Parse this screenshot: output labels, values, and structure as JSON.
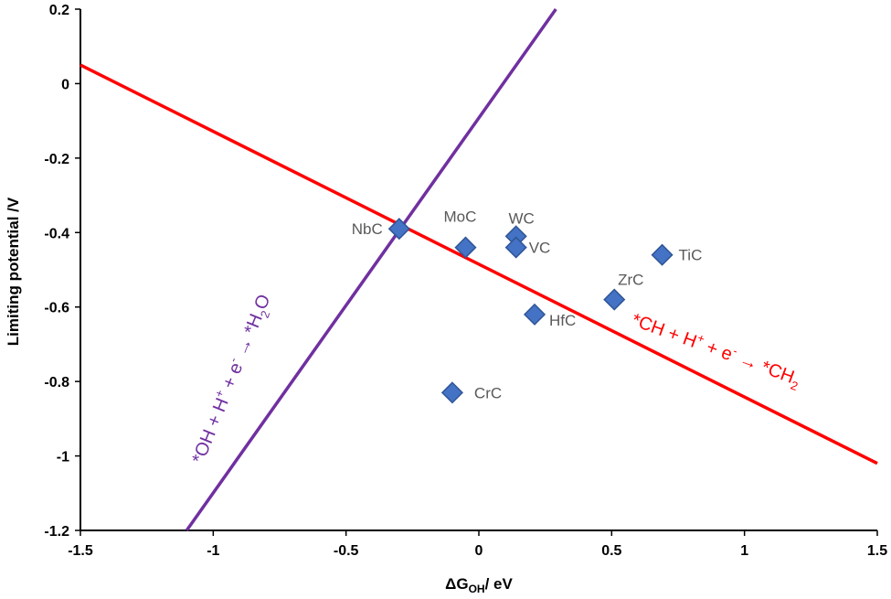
{
  "chart_data": {
    "type": "scatter",
    "title": "",
    "xlabel": {
      "main": "ΔG",
      "sub": "OH",
      "rest": "/ eV"
    },
    "ylabel": "Limiting potential /V",
    "xlim": [
      -1.5,
      1.5
    ],
    "ylim": [
      -1.2,
      0.2
    ],
    "x_ticks": [
      -1.5,
      -1,
      -0.5,
      0,
      0.5,
      1,
      1.5
    ],
    "x_tick_labels": [
      "-1.5",
      "-1",
      "-0.5",
      "0",
      "0.5",
      "1",
      "1.5"
    ],
    "y_ticks": [
      0.2,
      0,
      -0.2,
      -0.4,
      -0.6,
      -0.8,
      -1,
      -1.2
    ],
    "y_tick_labels": [
      "0.2",
      "0",
      "-0.2",
      "-0.4",
      "-0.6",
      "-0.8",
      "-1",
      "-1.2"
    ],
    "grid": false,
    "marker_color": "#4472C4",
    "marker_edge_color": "#2F5597",
    "points": [
      {
        "label": "NbC",
        "x": -0.3,
        "y": -0.39
      },
      {
        "label": "MoC",
        "x": -0.05,
        "y": -0.44
      },
      {
        "label": "WC",
        "x": 0.14,
        "y": -0.41
      },
      {
        "label": "VC",
        "x": 0.14,
        "y": -0.44
      },
      {
        "label": "TiC",
        "x": 0.69,
        "y": -0.46
      },
      {
        "label": "ZrC",
        "x": 0.51,
        "y": -0.58
      },
      {
        "label": "HfC",
        "x": 0.21,
        "y": -0.62
      },
      {
        "label": "CrC",
        "x": -0.1,
        "y": -0.83
      }
    ],
    "lines": [
      {
        "name": "*CH + H+ + e- → *CH2",
        "color": "#FF0000",
        "x": [
          -1.5,
          1.5
        ],
        "y": [
          0.05,
          -1.02
        ],
        "annotation": {
          "parts": [
            "*CH + H",
            "+",
            " + e",
            "-",
            " → *CH",
            "2"
          ]
        }
      },
      {
        "name": "*OH + H+ + e- → *H2O",
        "color": "#7030A0",
        "x": [
          -1.1,
          0.29
        ],
        "y": [
          -1.2,
          0.2
        ],
        "annotation": {
          "parts": [
            "*OH + H",
            "+",
            " + e",
            "-",
            " → *H",
            "2",
            "O"
          ]
        }
      }
    ]
  }
}
